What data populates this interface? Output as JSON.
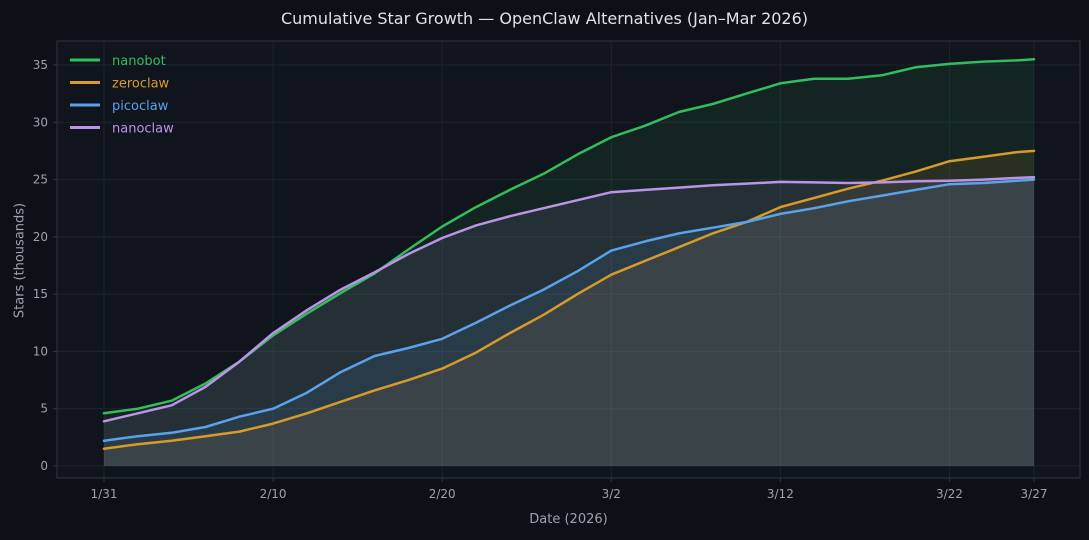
{
  "title": "Cumulative Star Growth — OpenClaw Alternatives (Jan–Mar 2026)",
  "colors": {
    "page_bg": "#0d1117",
    "plot_bg": "#10141c",
    "grid": "#1d232c",
    "spine": "#2e353e",
    "tick_text": "#9aa3ad",
    "title_text": "#dfe3e8"
  },
  "chart_data": {
    "type": "line",
    "title": "Cumulative Star Growth — OpenClaw Alternatives (Jan–Mar 2026)",
    "xlabel": "Date (2026)",
    "ylabel": "Stars (thousands)",
    "grid": "on",
    "legend_position": "upper-left",
    "x_unit": "days since 1/31",
    "x": [
      0,
      2,
      4,
      6,
      8,
      10,
      12,
      14,
      16,
      18,
      20,
      22,
      24,
      26,
      28,
      30,
      32,
      34,
      36,
      38,
      40,
      42,
      44,
      46,
      48,
      50,
      52,
      54,
      55
    ],
    "x_dates": [
      "1/31",
      "2/2",
      "2/4",
      "2/6",
      "2/8",
      "2/10",
      "2/12",
      "2/14",
      "2/16",
      "2/18",
      "2/20",
      "2/22",
      "2/24",
      "2/26",
      "2/28",
      "3/2",
      "3/4",
      "3/6",
      "3/8",
      "3/10",
      "3/12",
      "3/14",
      "3/16",
      "3/18",
      "3/20",
      "3/22",
      "3/24",
      "3/26",
      "3/27"
    ],
    "x_ticks": [
      {
        "label": "1/31",
        "day": 0
      },
      {
        "label": "2/10",
        "day": 10
      },
      {
        "label": "2/20",
        "day": 20
      },
      {
        "label": "3/2",
        "day": 30
      },
      {
        "label": "3/12",
        "day": 40
      },
      {
        "label": "3/22",
        "day": 50
      },
      {
        "label": "3/27",
        "day": 55
      }
    ],
    "y_ticks": [
      0,
      5,
      10,
      15,
      20,
      25,
      30,
      35
    ],
    "ylim": [
      -1.05,
      37.1
    ],
    "series": [
      {
        "name": "nanobot",
        "color": "#33bd5c",
        "values": [
          4.6,
          5.0,
          5.7,
          7.2,
          9.1,
          11.4,
          13.3,
          15.1,
          16.8,
          18.9,
          20.9,
          22.6,
          24.1,
          25.5,
          27.2,
          28.7,
          29.7,
          30.9,
          31.6,
          32.5,
          33.4,
          33.8,
          33.8,
          34.1,
          34.8,
          35.1,
          35.3,
          35.4,
          35.5
        ]
      },
      {
        "name": "zeroclaw",
        "color": "#d79b2b",
        "values": [
          1.5,
          1.9,
          2.2,
          2.6,
          3.0,
          3.7,
          4.6,
          5.6,
          6.6,
          7.5,
          8.5,
          9.9,
          11.6,
          13.2,
          15.0,
          16.7,
          17.9,
          19.1,
          20.3,
          21.3,
          22.6,
          23.4,
          24.2,
          24.9,
          25.7,
          26.6,
          27.0,
          27.4,
          27.5
        ]
      },
      {
        "name": "picoclaw",
        "color": "#5aa2ec",
        "values": [
          2.2,
          2.6,
          2.9,
          3.4,
          4.3,
          5.0,
          6.4,
          8.2,
          9.6,
          10.3,
          11.1,
          12.5,
          14.0,
          15.4,
          17.0,
          18.8,
          19.6,
          20.3,
          20.8,
          21.3,
          22.0,
          22.5,
          23.1,
          23.6,
          24.1,
          24.6,
          24.7,
          24.9,
          25.0
        ]
      },
      {
        "name": "nanoclaw",
        "color": "#bd93e8",
        "values": [
          3.9,
          4.6,
          5.3,
          6.9,
          9.1,
          11.6,
          13.6,
          15.4,
          16.9,
          18.5,
          19.9,
          21.0,
          21.8,
          22.5,
          23.2,
          23.9,
          24.1,
          24.3,
          24.5,
          24.65,
          24.8,
          24.75,
          24.7,
          24.75,
          24.85,
          24.9,
          25.0,
          25.15,
          25.2
        ]
      }
    ]
  }
}
